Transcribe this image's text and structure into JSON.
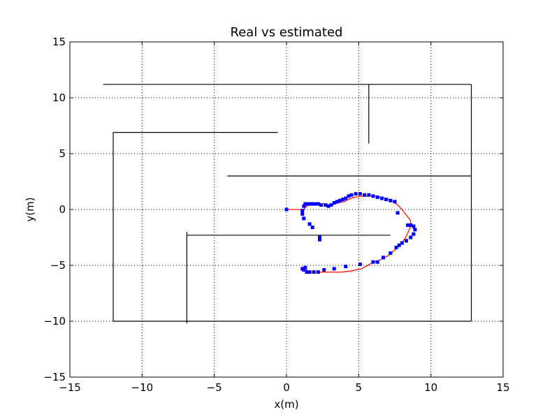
{
  "chart_data": {
    "type": "scatter",
    "title": "Real vs estimated",
    "xlabel": "x(m)",
    "ylabel": "y(m)",
    "xlim": [
      -15,
      15
    ],
    "ylim": [
      -15,
      15
    ],
    "xticks": [
      -15,
      -10,
      -5,
      0,
      5,
      10,
      15
    ],
    "yticks": [
      -15,
      -10,
      -5,
      0,
      5,
      10,
      15
    ],
    "xtick_labels": [
      "−15",
      "−10",
      "−5",
      "0",
      "5",
      "10",
      "15"
    ],
    "ytick_labels": [
      "−15",
      "−10",
      "−5",
      "0",
      "5",
      "10",
      "15"
    ],
    "grid": true,
    "walls": [
      {
        "x": [
          -12.7,
          12.8
        ],
        "y": [
          11.2,
          11.2
        ]
      },
      {
        "x": [
          5.7,
          5.7
        ],
        "y": [
          11.2,
          5.9
        ]
      },
      {
        "x": [
          12.8,
          12.8
        ],
        "y": [
          11.2,
          -10.0
        ]
      },
      {
        "x": [
          -12.0,
          -0.6
        ],
        "y": [
          6.9,
          6.9
        ]
      },
      {
        "x": [
          -12.0,
          -12.0
        ],
        "y": [
          6.9,
          -10.0
        ]
      },
      {
        "x": [
          -4.1,
          12.8
        ],
        "y": [
          3.0,
          3.0
        ]
      },
      {
        "x": [
          -6.9,
          7.2
        ],
        "y": [
          -2.3,
          -2.3
        ]
      },
      {
        "x": [
          -6.9,
          -6.9
        ],
        "y": [
          -2.0,
          -10.2
        ]
      },
      {
        "x": [
          -12.0,
          12.8
        ],
        "y": [
          -10.0,
          -10.0
        ]
      }
    ],
    "series": [
      {
        "style": "line",
        "color": "#ff0000",
        "x": [
          0.0,
          0.6,
          1.2,
          1.4,
          1.8,
          2.5,
          3.1,
          3.6,
          4.0,
          4.3,
          4.7,
          5.4,
          6.2,
          6.9,
          7.4,
          7.7,
          8.0,
          8.3,
          8.6,
          8.6,
          8.4,
          8.2,
          8.0,
          7.6,
          7.1,
          6.5,
          5.9,
          5.2,
          4.5,
          3.8,
          3.0,
          2.3,
          1.7,
          1.2,
          1.1,
          1.3,
          1.5
        ],
        "y": [
          0.0,
          0.0,
          0.0,
          0.3,
          0.5,
          0.5,
          0.4,
          0.6,
          0.7,
          0.9,
          1.1,
          1.2,
          1.2,
          1.0,
          0.7,
          0.4,
          0.0,
          -0.5,
          -1.0,
          -1.5,
          -2.1,
          -2.6,
          -3.0,
          -3.5,
          -4.1,
          -4.5,
          -4.8,
          -5.3,
          -5.5,
          -5.6,
          -5.6,
          -5.6,
          -5.6,
          -5.5,
          -5.3,
          -5.3,
          -5.5
        ]
      },
      {
        "style": "marker",
        "color": "#0000ff",
        "x": [
          0.0,
          1.1,
          1.1,
          1.2,
          1.2,
          1.3,
          1.4,
          1.6,
          1.8,
          2.0,
          2.2,
          2.4,
          2.7,
          2.9,
          3.1,
          3.3,
          3.5,
          3.7,
          3.9,
          4.1,
          4.3,
          4.5,
          4.8,
          5.1,
          5.4,
          5.7,
          6.0,
          6.3,
          6.6,
          6.9,
          7.2,
          7.5,
          7.7,
          8.4,
          8.6,
          8.8,
          8.9,
          8.8,
          8.6,
          8.3,
          8.0,
          7.8,
          7.6,
          7.2,
          6.7,
          6.3,
          6.0,
          5.1,
          4.1,
          3.3,
          2.6,
          2.2,
          1.9,
          1.6,
          1.4,
          1.2,
          1.1,
          1.3,
          1.6,
          1.8,
          2.3,
          2.3
        ],
        "y": [
          0.0,
          -0.1,
          -0.4,
          0.3,
          -0.8,
          0.5,
          0.5,
          0.5,
          0.5,
          0.5,
          0.5,
          0.4,
          0.4,
          0.3,
          0.4,
          0.6,
          0.7,
          0.8,
          0.9,
          1.0,
          1.2,
          1.3,
          1.4,
          1.4,
          1.3,
          1.3,
          1.2,
          1.1,
          1.0,
          0.9,
          0.8,
          0.7,
          -0.3,
          -1.4,
          -1.4,
          -1.5,
          -1.8,
          -2.2,
          -2.5,
          -2.8,
          -3.0,
          -3.2,
          -3.4,
          -3.9,
          -4.3,
          -4.7,
          -4.7,
          -4.9,
          -5.1,
          -5.3,
          -5.4,
          -5.6,
          -5.6,
          -5.6,
          -5.6,
          -5.4,
          -5.3,
          -5.2,
          -1.3,
          -1.6,
          -2.5,
          -2.7
        ]
      }
    ]
  }
}
